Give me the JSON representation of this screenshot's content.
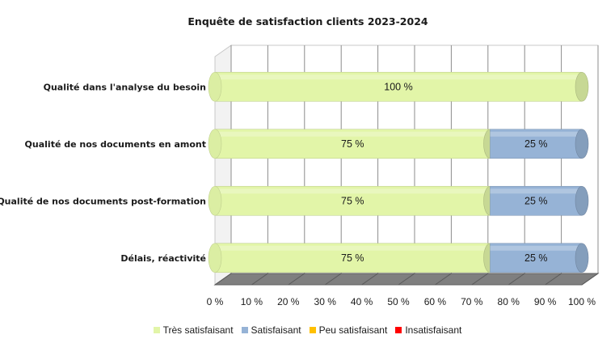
{
  "chart_data": {
    "type": "bar",
    "orientation": "horizontal-stacked-3d",
    "title": "Enquête de satisfaction clients 2023-2024",
    "categories": [
      "Qualité dans l'analyse du besoin",
      "Qualité de nos documents en amont",
      "Qualité de nos documents post-formation",
      "Délais, réactivité"
    ],
    "series": [
      {
        "name": "Très satisfaisant",
        "color": "#E2F5A8",
        "values": [
          100,
          75,
          75,
          75
        ]
      },
      {
        "name": "Satisfaisant",
        "color": "#96B3D6",
        "values": [
          0,
          25,
          25,
          25
        ]
      },
      {
        "name": "Peu satisfaisant",
        "color": "#FFC000",
        "values": [
          0,
          0,
          0,
          0
        ]
      },
      {
        "name": "Insatisfaisant",
        "color": "#FF0000",
        "values": [
          0,
          0,
          0,
          0
        ]
      }
    ],
    "xlim": [
      0,
      100
    ],
    "xticks": [
      "0 %",
      "10 %",
      "20 %",
      "30 %",
      "40 %",
      "50 %",
      "60 %",
      "70 %",
      "80 %",
      "90 %",
      "100 %"
    ],
    "value_suffix": " %",
    "legend_position": "bottom",
    "grid": true
  }
}
